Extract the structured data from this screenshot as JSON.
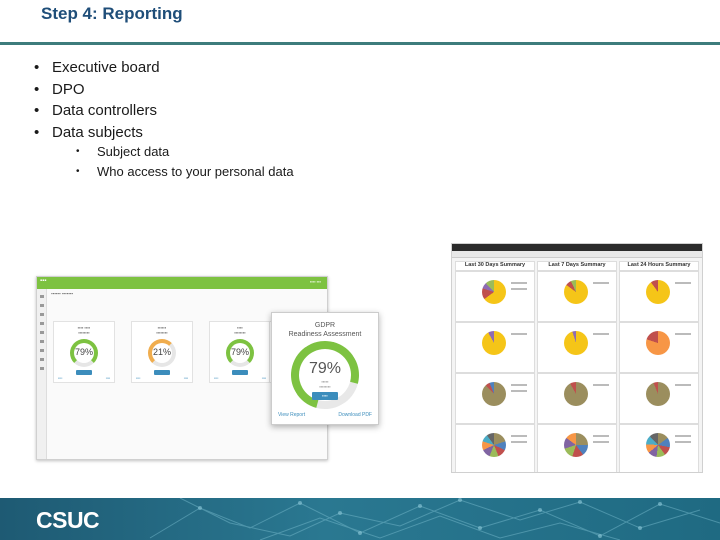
{
  "slide": {
    "title": "Step 4: Reporting",
    "bullets": [
      "Executive board",
      "DPO",
      "Data controllers",
      "Data subjects"
    ],
    "sub_bullets": [
      "Subject data",
      "Who access to your personal data"
    ]
  },
  "dashboard_right": {
    "headers": [
      "Last 30 Days Summary",
      "Last 7 Days Summary",
      "Last 24 Hours Summary"
    ]
  },
  "overlay": {
    "title_line1": "GDPR",
    "title_line2": "Readiness Assessment",
    "value": "79%",
    "view_report": "View Report",
    "download_pdf": "Download PDF"
  },
  "cards": [
    {
      "value": "79%",
      "color": "#7dc241"
    },
    {
      "value": "21%",
      "color": "#f0ad4e"
    },
    {
      "value": "79%",
      "color": "#7dc241"
    }
  ],
  "colors": {
    "title": "#1f4e79",
    "rule": "#3d7c7c",
    "accent_green": "#7dc241",
    "footer": "#1e5a73"
  },
  "footer": {
    "logo": "CSUC"
  }
}
